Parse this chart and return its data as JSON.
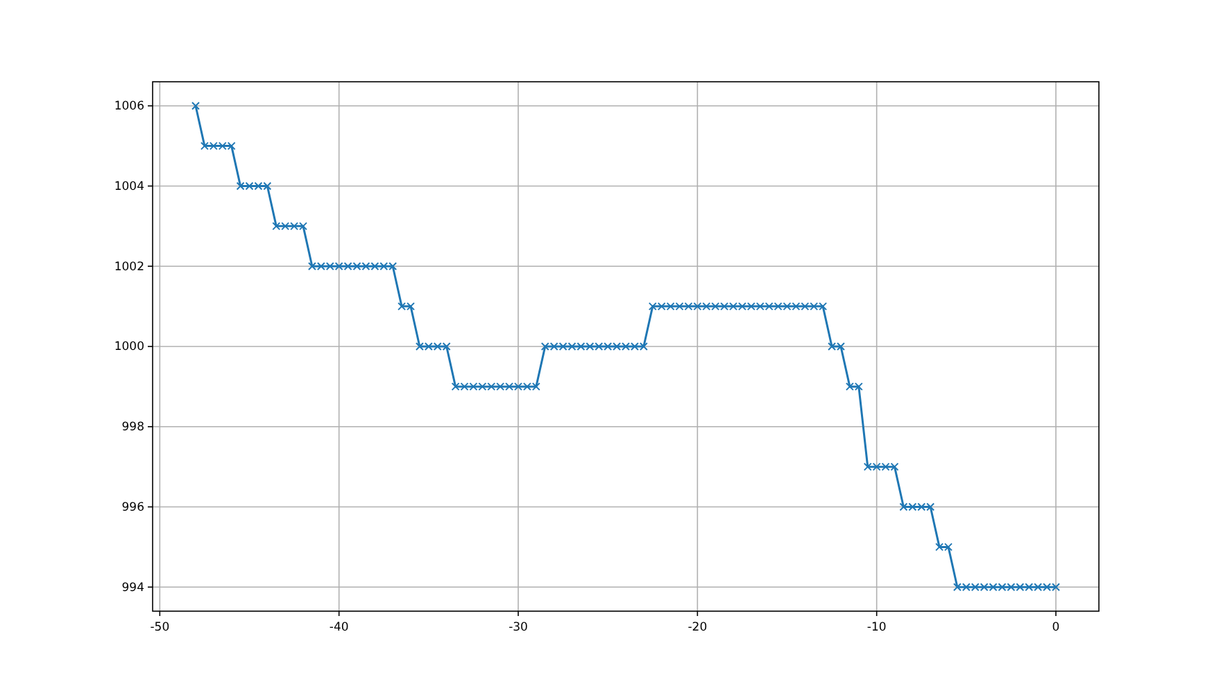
{
  "chart_data": {
    "type": "line",
    "x": [
      -48,
      -47.5,
      -47,
      -46.5,
      -46,
      -45.5,
      -45,
      -44.5,
      -44,
      -43.5,
      -43,
      -42.5,
      -42,
      -41.5,
      -41,
      -40.5,
      -40,
      -39.5,
      -39,
      -38.5,
      -38,
      -37.5,
      -37,
      -36.5,
      -36,
      -35.5,
      -35,
      -34.5,
      -34,
      -33.5,
      -33,
      -32.5,
      -32,
      -31.5,
      -31,
      -30.5,
      -30,
      -29.5,
      -29,
      -28.5,
      -28,
      -27.5,
      -27,
      -26.5,
      -26,
      -25.5,
      -25,
      -24.5,
      -24,
      -23.5,
      -23,
      -22.5,
      -22,
      -21.5,
      -21,
      -20.5,
      -20,
      -19.5,
      -19,
      -18.5,
      -18,
      -17.5,
      -17,
      -16.5,
      -16,
      -15.5,
      -15,
      -14.5,
      -14,
      -13.5,
      -13,
      -12.5,
      -12,
      -11.5,
      -11,
      -10.5,
      -10,
      -9.5,
      -9,
      -8.5,
      -8,
      -7.5,
      -7,
      -6.5,
      -6,
      -5.5,
      -5,
      -4.5,
      -4,
      -3.5,
      -3,
      -2.5,
      -2,
      -1.5,
      -1,
      -0.5,
      0
    ],
    "series": [
      {
        "color": "#1f77b4",
        "values": [
          1006,
          1005,
          1005,
          1005,
          1005,
          1004,
          1004,
          1004,
          1004,
          1003,
          1003,
          1003,
          1003,
          1002,
          1002,
          1002,
          1002,
          1002,
          1002,
          1002,
          1002,
          1002,
          1002,
          1001,
          1001,
          1000,
          1000,
          1000,
          1000,
          999,
          999,
          999,
          999,
          999,
          999,
          999,
          999,
          999,
          999,
          1000,
          1000,
          1000,
          1000,
          1000,
          1000,
          1000,
          1000,
          1000,
          1000,
          1000,
          1000,
          1001,
          1001,
          1001,
          1001,
          1001,
          1001,
          1001,
          1001,
          1001,
          1001,
          1001,
          1001,
          1001,
          1001,
          1001,
          1001,
          1001,
          1001,
          1001,
          1001,
          1000,
          1000,
          999,
          999,
          997,
          997,
          997,
          997,
          996,
          996,
          996,
          996,
          995,
          995,
          994,
          994,
          994,
          994,
          994,
          994,
          994,
          994,
          994,
          994,
          994,
          994
        ]
      }
    ],
    "xlim": [
      -50.4,
      2.4
    ],
    "ylim": [
      993.4,
      1006.6
    ],
    "xticks": [
      -50,
      -40,
      -30,
      -20,
      -10,
      0
    ],
    "yticks": [
      994,
      996,
      998,
      1000,
      1002,
      1004,
      1006
    ],
    "grid": true,
    "marker": "cross",
    "line_style": "solid"
  }
}
